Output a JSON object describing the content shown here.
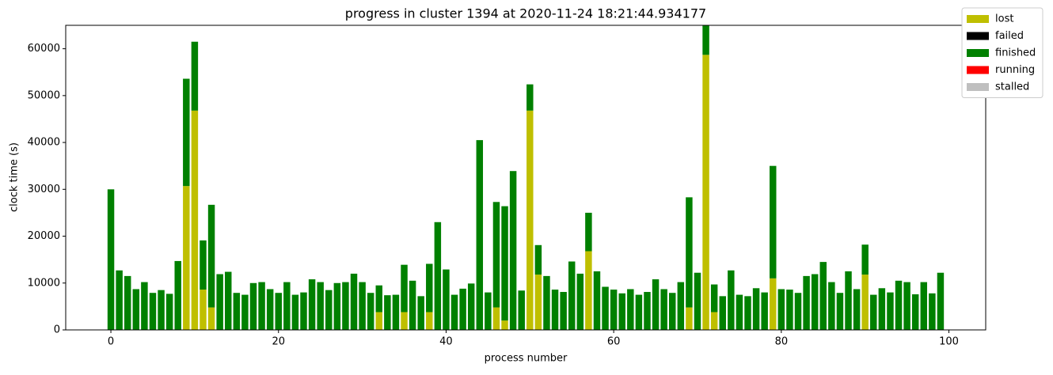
{
  "chart_data": {
    "type": "bar",
    "stacked": true,
    "title": "progress in cluster 1394 at 2020-11-24 18:21:44.934177",
    "xlabel": "process number",
    "ylabel": "clock time (s)",
    "x": [
      0,
      1,
      2,
      3,
      4,
      5,
      6,
      7,
      8,
      9,
      10,
      11,
      12,
      13,
      14,
      15,
      16,
      17,
      18,
      19,
      20,
      21,
      22,
      23,
      24,
      25,
      26,
      27,
      28,
      29,
      30,
      31,
      32,
      33,
      34,
      35,
      36,
      37,
      38,
      39,
      40,
      41,
      42,
      43,
      44,
      45,
      46,
      47,
      48,
      49,
      50,
      51,
      52,
      53,
      54,
      55,
      56,
      57,
      58,
      59,
      60,
      61,
      62,
      63,
      64,
      65,
      66,
      67,
      68,
      69,
      70,
      71,
      72,
      73,
      74,
      75,
      76,
      77,
      78,
      79,
      80,
      81,
      82,
      83,
      84,
      85,
      86,
      87,
      88,
      89,
      90,
      91,
      92,
      93,
      94,
      95,
      96,
      97,
      98,
      99
    ],
    "series": [
      {
        "name": "lost",
        "color": "#bfbf00",
        "values": [
          0,
          0,
          0,
          0,
          0,
          0,
          0,
          0,
          0,
          30700,
          46800,
          8600,
          4800,
          0,
          0,
          0,
          0,
          0,
          0,
          0,
          0,
          0,
          0,
          0,
          0,
          0,
          0,
          0,
          0,
          0,
          0,
          0,
          3800,
          0,
          0,
          3800,
          0,
          0,
          3800,
          0,
          0,
          0,
          0,
          0,
          0,
          0,
          4800,
          2000,
          0,
          0,
          46800,
          11800,
          0,
          0,
          0,
          0,
          0,
          16800,
          0,
          0,
          0,
          0,
          0,
          0,
          0,
          0,
          0,
          0,
          0,
          4800,
          0,
          58700,
          3800,
          0,
          0,
          0,
          0,
          0,
          0,
          11000,
          0,
          0,
          0,
          0,
          0,
          0,
          0,
          0,
          0,
          0,
          11800,
          0,
          0,
          0,
          0,
          0,
          0,
          0,
          0,
          0
        ]
      },
      {
        "name": "failed",
        "color": "#000000",
        "values": [
          0,
          0,
          0,
          0,
          0,
          0,
          0,
          0,
          0,
          0,
          0,
          0,
          0,
          0,
          0,
          0,
          0,
          0,
          0,
          0,
          0,
          0,
          0,
          0,
          0,
          0,
          0,
          0,
          0,
          0,
          0,
          0,
          0,
          0,
          0,
          0,
          0,
          0,
          0,
          0,
          0,
          0,
          0,
          0,
          0,
          0,
          0,
          0,
          0,
          0,
          0,
          0,
          0,
          0,
          0,
          0,
          0,
          0,
          0,
          0,
          0,
          0,
          0,
          0,
          0,
          0,
          0,
          0,
          0,
          0,
          0,
          0,
          0,
          0,
          0,
          0,
          0,
          0,
          0,
          0,
          0,
          0,
          0,
          0,
          0,
          0,
          0,
          0,
          0,
          0,
          0,
          0,
          0,
          0,
          0,
          0,
          0,
          0,
          0,
          0
        ]
      },
      {
        "name": "finished",
        "color": "#008000",
        "values": [
          30000,
          12700,
          11500,
          8700,
          10200,
          7900,
          8500,
          7700,
          14700,
          22900,
          14700,
          10500,
          21900,
          11900,
          12400,
          7900,
          7500,
          10000,
          10200,
          8700,
          7900,
          10200,
          7500,
          8000,
          10800,
          10200,
          8500,
          10000,
          10200,
          12000,
          10200,
          7900,
          5700,
          7400,
          7500,
          10100,
          10500,
          7200,
          10300,
          23000,
          12900,
          7500,
          8800,
          9900,
          40500,
          8000,
          22500,
          24400,
          33900,
          8400,
          5600,
          6300,
          11500,
          8600,
          8100,
          14600,
          12000,
          8200,
          12500,
          9200,
          8600,
          7800,
          8700,
          7500,
          8100,
          10800,
          8700,
          7900,
          10200,
          23500,
          12200,
          7300,
          5900,
          7200,
          12700,
          7500,
          7200,
          8900,
          8000,
          24000,
          8700,
          8600,
          7900,
          11500,
          11900,
          14500,
          10200,
          7900,
          12500,
          8700,
          6400,
          7500,
          8900,
          8000,
          10500,
          10200,
          7600,
          10200,
          7800,
          12200
        ]
      },
      {
        "name": "running",
        "color": "#ff0000",
        "values": [
          0,
          0,
          0,
          0,
          0,
          0,
          0,
          0,
          0,
          0,
          0,
          0,
          0,
          0,
          0,
          0,
          0,
          0,
          0,
          0,
          0,
          0,
          0,
          0,
          0,
          0,
          0,
          0,
          0,
          0,
          0,
          0,
          0,
          0,
          0,
          0,
          0,
          0,
          0,
          0,
          0,
          0,
          0,
          0,
          0,
          0,
          0,
          0,
          0,
          0,
          0,
          0,
          0,
          0,
          0,
          0,
          0,
          0,
          0,
          0,
          0,
          0,
          0,
          0,
          0,
          0,
          0,
          0,
          0,
          0,
          0,
          0,
          0,
          0,
          0,
          0,
          0,
          0,
          0,
          0,
          0,
          0,
          0,
          0,
          0,
          0,
          0,
          0,
          0,
          0,
          0,
          0,
          0,
          0,
          0,
          0,
          0,
          0,
          0,
          0
        ]
      },
      {
        "name": "stalled",
        "color": "#bfbfbf",
        "values": [
          0,
          0,
          0,
          0,
          0,
          0,
          0,
          0,
          0,
          0,
          0,
          0,
          0,
          0,
          0,
          0,
          0,
          0,
          0,
          0,
          0,
          0,
          0,
          0,
          0,
          0,
          0,
          0,
          0,
          0,
          0,
          0,
          0,
          0,
          0,
          0,
          0,
          0,
          0,
          0,
          0,
          0,
          0,
          0,
          0,
          0,
          0,
          0,
          0,
          0,
          0,
          0,
          0,
          0,
          0,
          0,
          0,
          0,
          0,
          0,
          0,
          0,
          0,
          0,
          0,
          0,
          0,
          0,
          0,
          0,
          0,
          0,
          0,
          0,
          0,
          0,
          0,
          0,
          0,
          0,
          0,
          0,
          0,
          0,
          0,
          0,
          0,
          0,
          0,
          0,
          0,
          0,
          0,
          0,
          0,
          0,
          0,
          0,
          0,
          0
        ]
      }
    ],
    "xlim": [
      -5.39,
      104.39
    ],
    "xticks": [
      0,
      20,
      40,
      60,
      80,
      100
    ],
    "ylim": [
      0,
      65000
    ],
    "yticks": [
      0,
      10000,
      20000,
      30000,
      40000,
      50000,
      60000
    ],
    "legend": "upper right"
  }
}
